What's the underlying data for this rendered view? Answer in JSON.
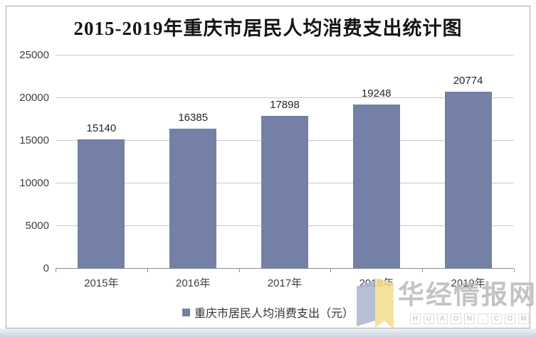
{
  "chart_data": {
    "type": "bar",
    "title": "2015-2019年重庆市居民人均消费支出统计图",
    "categories": [
      "2015年",
      "2016年",
      "2017年",
      "2018年",
      "2019年"
    ],
    "values": [
      15140,
      16385,
      17898,
      19248,
      20774
    ],
    "legend_label": "重庆市居民人均消费支出（元）",
    "legend_position": "bottom",
    "xlabel": "",
    "ylabel": "",
    "ylim": [
      0,
      25000
    ],
    "yticks": [
      0,
      5000,
      10000,
      15000,
      20000,
      25000
    ],
    "grid": true,
    "bar_color": "#7480A6"
  },
  "watermark": {
    "brand": "华经情报网",
    "domain_letters": [
      "H",
      "U",
      "A",
      "O",
      "N",
      ".",
      "C",
      "O",
      "M"
    ]
  },
  "colors": {
    "bar": "#7480A6",
    "gridline": "#c9c9c9",
    "axis": "#8c8c8c",
    "watermark_text": "#b9b9b9",
    "logo_blue": "#a9b5ce",
    "logo_yellow": "#f4dd8c"
  }
}
